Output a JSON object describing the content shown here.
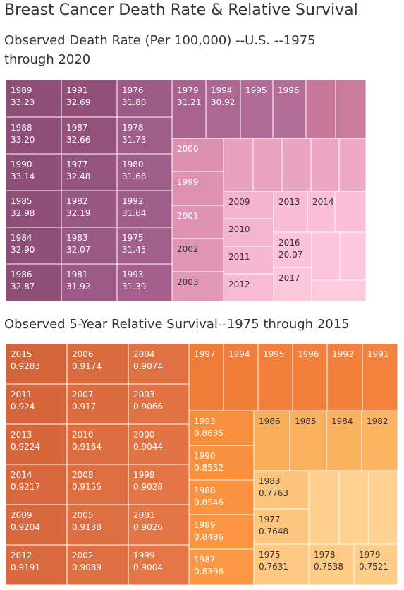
{
  "title": "Breast Cancer Death Rate & Relative Survival",
  "chart_data": [
    {
      "type": "treemap",
      "title": "Observed  Death Rate (Per 100,000) --U.S. --1975 through 2020",
      "items": [
        {
          "label": "1989",
          "value": 33.23,
          "value_text": "33.23"
        },
        {
          "label": "1988",
          "value": 33.2,
          "value_text": "33.20"
        },
        {
          "label": "1990",
          "value": 33.14,
          "value_text": "33.14"
        },
        {
          "label": "1985",
          "value": 32.98,
          "value_text": "32.98"
        },
        {
          "label": "1984",
          "value": 32.9,
          "value_text": "32.90"
        },
        {
          "label": "1986",
          "value": 32.87,
          "value_text": "32.87"
        },
        {
          "label": "1991",
          "value": 32.69,
          "value_text": "32.69"
        },
        {
          "label": "1987",
          "value": 32.66,
          "value_text": "32.66"
        },
        {
          "label": "1977",
          "value": 32.48,
          "value_text": "32.48"
        },
        {
          "label": "1982",
          "value": 32.19,
          "value_text": "32.19"
        },
        {
          "label": "1983",
          "value": 32.07,
          "value_text": "32.07"
        },
        {
          "label": "1981",
          "value": 31.92,
          "value_text": "31.92"
        },
        {
          "label": "1976",
          "value": 31.8,
          "value_text": "31.80"
        },
        {
          "label": "1978",
          "value": 31.73,
          "value_text": "31.73"
        },
        {
          "label": "1980",
          "value": 31.68,
          "value_text": "31.68"
        },
        {
          "label": "1992",
          "value": 31.64,
          "value_text": "31.64"
        },
        {
          "label": "1975",
          "value": 31.45,
          "value_text": "31.45"
        },
        {
          "label": "1993",
          "value": 31.39,
          "value_text": "31.39"
        },
        {
          "label": "1979",
          "value": 31.21,
          "value_text": "31.21"
        },
        {
          "label": "1994",
          "value": 30.92,
          "value_text": "30.92"
        },
        {
          "label": "1995",
          "value": null,
          "value_text": ""
        },
        {
          "label": "1996",
          "value": null,
          "value_text": ""
        },
        {
          "label": "",
          "value": null,
          "value_text": ""
        },
        {
          "label": "",
          "value": null,
          "value_text": ""
        },
        {
          "label": "2000",
          "value": null,
          "value_text": ""
        },
        {
          "label": "",
          "value": null,
          "value_text": ""
        },
        {
          "label": "",
          "value": null,
          "value_text": ""
        },
        {
          "label": "",
          "value": null,
          "value_text": ""
        },
        {
          "label": "",
          "value": null,
          "value_text": ""
        },
        {
          "label": "",
          "value": null,
          "value_text": ""
        },
        {
          "label": "1999",
          "value": null,
          "value_text": ""
        },
        {
          "label": "2001",
          "value": null,
          "value_text": ""
        },
        {
          "label": "2002",
          "value": null,
          "value_text": ""
        },
        {
          "label": "2003",
          "value": null,
          "value_text": ""
        },
        {
          "label": "2009",
          "value": null,
          "value_text": ""
        },
        {
          "label": "2010",
          "value": null,
          "value_text": ""
        },
        {
          "label": "2011",
          "value": null,
          "value_text": ""
        },
        {
          "label": "2012",
          "value": null,
          "value_text": ""
        },
        {
          "label": "2013",
          "value": null,
          "value_text": ""
        },
        {
          "label": "2014",
          "value": null,
          "value_text": ""
        },
        {
          "label": "",
          "value": null,
          "value_text": ""
        },
        {
          "label": "2016",
          "value": 20.07,
          "value_text": "20.07"
        },
        {
          "label": "",
          "value": null,
          "value_text": ""
        },
        {
          "label": "",
          "value": null,
          "value_text": ""
        },
        {
          "label": "2017",
          "value": null,
          "value_text": ""
        },
        {
          "label": "",
          "value": null,
          "value_text": ""
        }
      ]
    },
    {
      "type": "treemap",
      "title": "Observed 5-Year Relative Survival--1975 through 2015",
      "items": [
        {
          "label": "2015",
          "value": 0.9283,
          "value_text": "0.9283"
        },
        {
          "label": "2011",
          "value": 0.924,
          "value_text": "0.924"
        },
        {
          "label": "2013",
          "value": 0.9224,
          "value_text": "0.9224"
        },
        {
          "label": "2014",
          "value": 0.9217,
          "value_text": "0.9217"
        },
        {
          "label": "2009",
          "value": 0.9204,
          "value_text": "0.9204"
        },
        {
          "label": "2012",
          "value": 0.9191,
          "value_text": "0.9191"
        },
        {
          "label": "2006",
          "value": 0.9174,
          "value_text": "0.9174"
        },
        {
          "label": "2007",
          "value": 0.917,
          "value_text": "0.917"
        },
        {
          "label": "2010",
          "value": 0.9164,
          "value_text": "0.9164"
        },
        {
          "label": "2008",
          "value": 0.9155,
          "value_text": "0.9155"
        },
        {
          "label": "2005",
          "value": 0.9138,
          "value_text": "0.9138"
        },
        {
          "label": "2002",
          "value": 0.9089,
          "value_text": "0.9089"
        },
        {
          "label": "2004",
          "value": 0.9074,
          "value_text": "0.9074"
        },
        {
          "label": "2003",
          "value": 0.9066,
          "value_text": "0.9066"
        },
        {
          "label": "2000",
          "value": 0.9044,
          "value_text": "0.9044"
        },
        {
          "label": "1998",
          "value": 0.9028,
          "value_text": "0.9028"
        },
        {
          "label": "2001",
          "value": 0.9026,
          "value_text": "0.9026"
        },
        {
          "label": "1999",
          "value": 0.9004,
          "value_text": "0.9004"
        },
        {
          "label": "1997",
          "value": null,
          "value_text": ""
        },
        {
          "label": "1994",
          "value": null,
          "value_text": ""
        },
        {
          "label": "1995",
          "value": null,
          "value_text": ""
        },
        {
          "label": "1996",
          "value": null,
          "value_text": ""
        },
        {
          "label": "1992",
          "value": null,
          "value_text": ""
        },
        {
          "label": "1991",
          "value": null,
          "value_text": ""
        },
        {
          "label": "1993",
          "value": 0.8635,
          "value_text": "0.8635"
        },
        {
          "label": "1990",
          "value": 0.8552,
          "value_text": "0.8552"
        },
        {
          "label": "1988",
          "value": 0.8546,
          "value_text": "0.8546"
        },
        {
          "label": "1989",
          "value": 0.8486,
          "value_text": "0.8486"
        },
        {
          "label": "1987",
          "value": 0.8398,
          "value_text": "0.8398"
        },
        {
          "label": "1986",
          "value": null,
          "value_text": ""
        },
        {
          "label": "1985",
          "value": null,
          "value_text": ""
        },
        {
          "label": "1984",
          "value": null,
          "value_text": ""
        },
        {
          "label": "1982",
          "value": null,
          "value_text": ""
        },
        {
          "label": "1983",
          "value": 0.7763,
          "value_text": "0.7763"
        },
        {
          "label": "1977",
          "value": 0.7648,
          "value_text": "0.7648"
        },
        {
          "label": "1975",
          "value": 0.7631,
          "value_text": "0.7631"
        },
        {
          "label": "1978",
          "value": 0.7538,
          "value_text": "0.7538"
        },
        {
          "label": "1979",
          "value": 0.7521,
          "value_text": "0.7521"
        },
        {
          "label": "",
          "value": null,
          "value_text": ""
        },
        {
          "label": "",
          "value": null,
          "value_text": ""
        },
        {
          "label": "",
          "value": null,
          "value_text": ""
        }
      ]
    }
  ]
}
